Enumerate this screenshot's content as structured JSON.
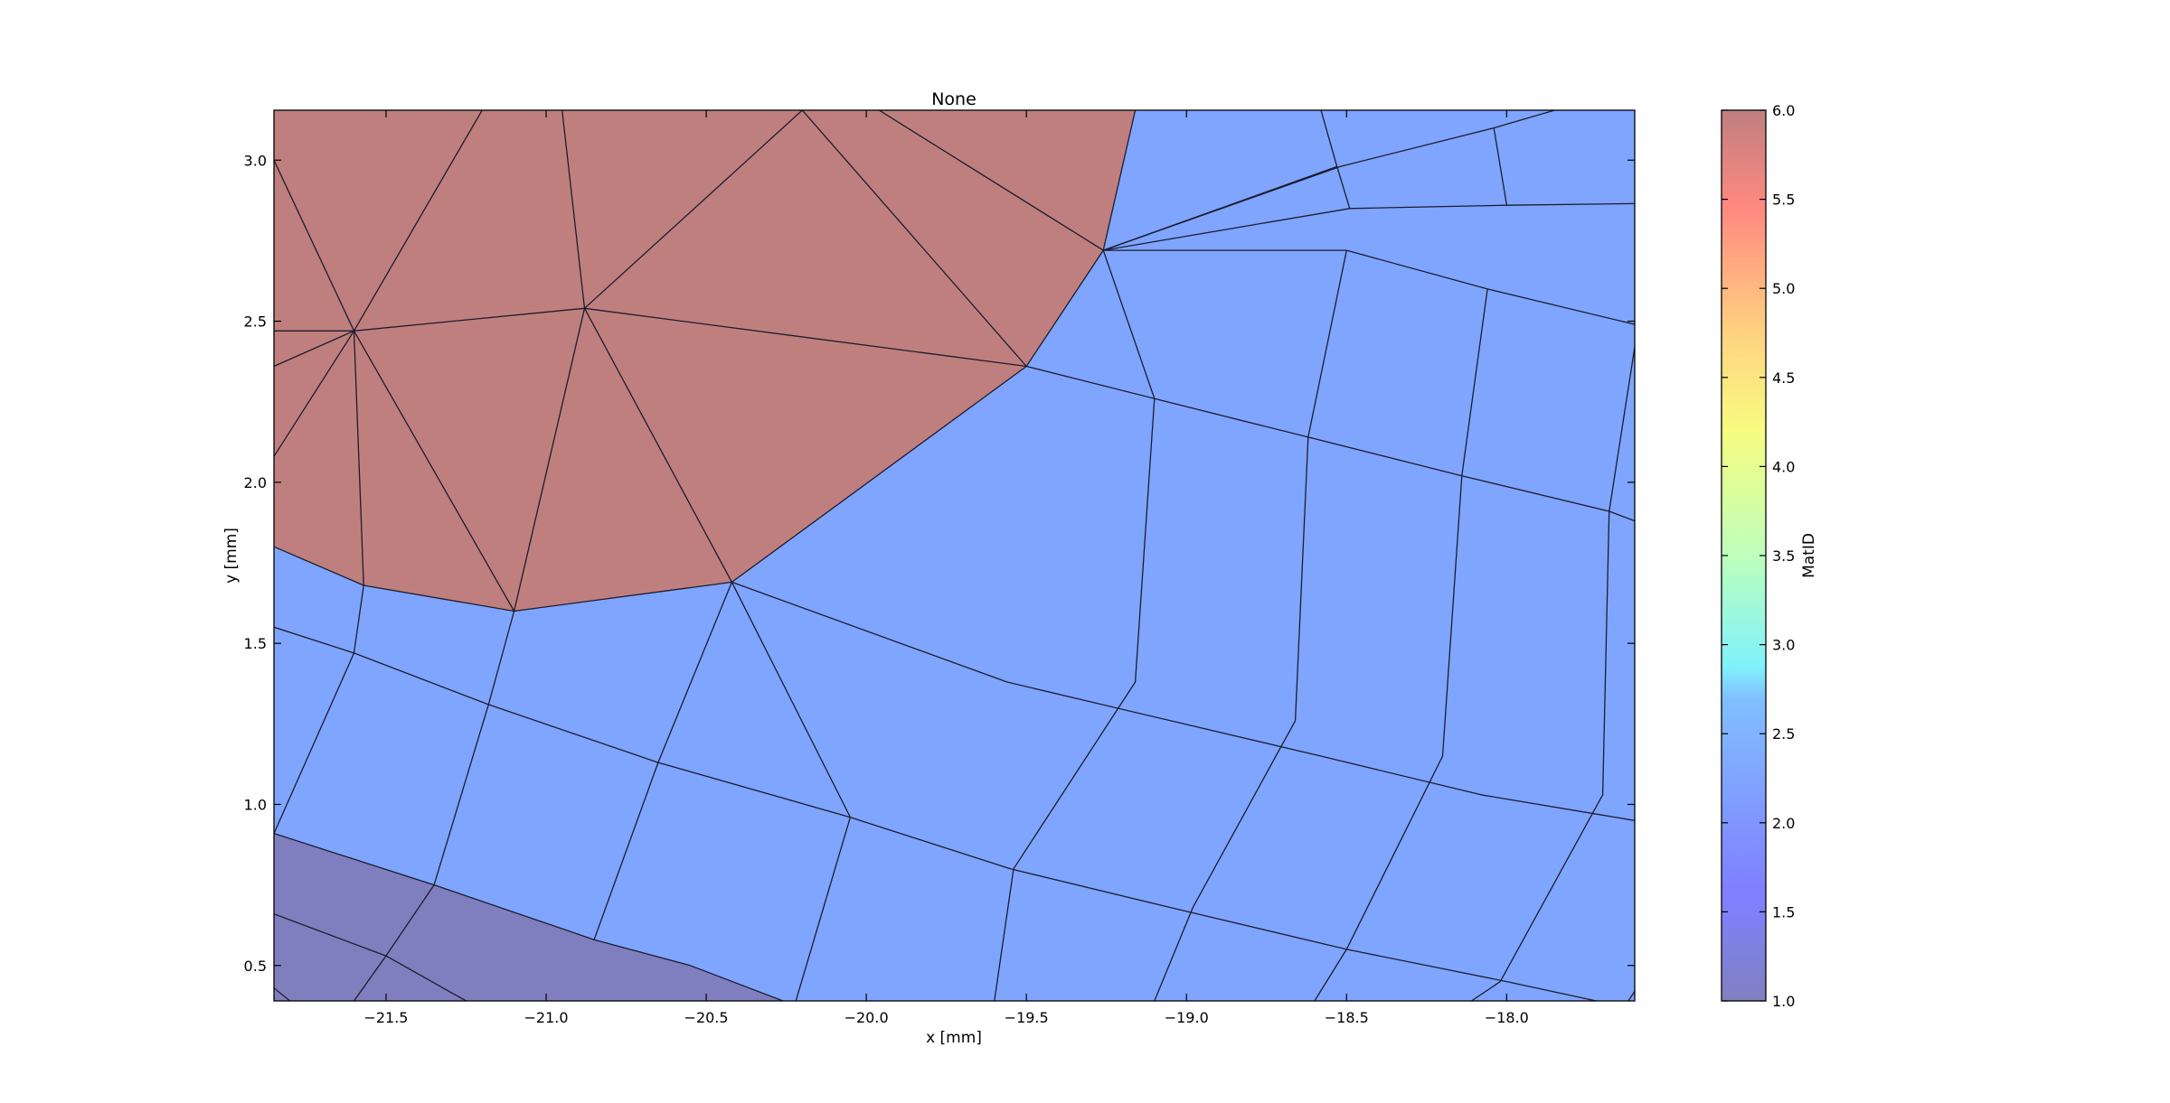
{
  "chart_data": {
    "type": "heatmap",
    "title": "None",
    "xlabel": "x [mm]",
    "ylabel": "y [mm]",
    "xlim": [
      -21.85,
      -17.6
    ],
    "ylim": [
      0.39,
      3.155
    ],
    "x_ticks": [
      -21.5,
      -21.0,
      -20.5,
      -20.0,
      -19.5,
      -19.0,
      -18.5,
      -18.0
    ],
    "y_ticks": [
      0.5,
      1.0,
      1.5,
      2.0,
      2.5,
      3.0
    ],
    "x_tick_labels": [
      "−21.5",
      "−21.0",
      "−20.5",
      "−20.0",
      "−19.5",
      "−19.0",
      "−18.5",
      "−18.0"
    ],
    "y_tick_labels": [
      "0.5",
      "1.0",
      "1.5",
      "2.0",
      "2.5",
      "3.0"
    ],
    "grid": false,
    "colorbar": {
      "label": "MatID",
      "min": 1.0,
      "max": 6.0,
      "ticks": [
        1.0,
        1.5,
        2.0,
        2.5,
        3.0,
        3.5,
        4.0,
        4.5,
        5.0,
        5.5,
        6.0
      ],
      "tick_labels": [
        "1.0",
        "1.5",
        "2.0",
        "2.5",
        "3.0",
        "3.5",
        "4.0",
        "4.5",
        "5.0",
        "5.5",
        "6.0"
      ],
      "colormap": "jet",
      "alpha": 0.5
    },
    "materials": [
      {
        "mat_id": 6,
        "color": "#bf7f7f"
      },
      {
        "mat_id": 2,
        "color": "#7fa5ff"
      },
      {
        "mat_id": 1,
        "color": "#7f7fbf"
      }
    ],
    "regions": [
      {
        "mat_id": 2,
        "polygon": [
          [
            -21.85,
            0.39
          ],
          [
            -17.6,
            0.39
          ],
          [
            -17.6,
            3.155
          ],
          [
            -21.85,
            3.155
          ]
        ]
      },
      {
        "mat_id": 6,
        "polygon": [
          [
            -21.85,
            3.155
          ],
          [
            -19.16,
            3.155
          ],
          [
            -19.26,
            2.72
          ],
          [
            -19.5,
            2.36
          ],
          [
            -20.42,
            1.69
          ],
          [
            -21.1,
            1.6
          ],
          [
            -21.57,
            1.68
          ],
          [
            -21.85,
            1.8
          ]
        ]
      },
      {
        "mat_id": 1,
        "polygon": [
          [
            -21.85,
            0.91
          ],
          [
            -21.35,
            0.75
          ],
          [
            -20.85,
            0.58
          ],
          [
            -20.55,
            0.5
          ],
          [
            -20.26,
            0.39
          ],
          [
            -21.85,
            0.39
          ]
        ]
      }
    ],
    "mesh_edges": [
      [
        [
          -21.85,
          1.8
        ],
        [
          -21.57,
          1.68
        ],
        [
          -21.1,
          1.6
        ],
        [
          -20.42,
          1.69
        ],
        [
          -19.5,
          2.36
        ],
        [
          -19.26,
          2.72
        ],
        [
          -19.16,
          3.155
        ]
      ],
      [
        [
          -21.85,
          1.55
        ],
        [
          -21.6,
          1.47
        ],
        [
          -21.18,
          1.31
        ],
        [
          -20.65,
          1.13
        ],
        [
          -20.05,
          0.96
        ],
        [
          -19.55,
          0.8
        ],
        [
          -19.05,
          0.68
        ],
        [
          -18.5,
          0.55
        ],
        [
          -18.0,
          0.45
        ],
        [
          -17.72,
          0.39
        ]
      ],
      [
        [
          -21.85,
          0.91
        ],
        [
          -21.35,
          0.75
        ],
        [
          -20.85,
          0.58
        ],
        [
          -20.55,
          0.5
        ],
        [
          -20.26,
          0.39
        ]
      ],
      [
        [
          -21.85,
          0.66
        ],
        [
          -21.5,
          0.53
        ],
        [
          -21.25,
          0.39
        ]
      ],
      [
        [
          -21.85,
          0.43
        ],
        [
          -21.8,
          0.39
        ]
      ],
      [
        [
          -20.42,
          1.69
        ],
        [
          -19.56,
          1.38
        ],
        [
          -19.05,
          1.26
        ],
        [
          -18.58,
          1.15
        ],
        [
          -18.08,
          1.03
        ],
        [
          -17.6,
          0.95
        ]
      ],
      [
        [
          -19.5,
          2.36
        ],
        [
          -19.1,
          2.26
        ],
        [
          -18.62,
          2.14
        ],
        [
          -18.14,
          2.02
        ],
        [
          -17.68,
          1.91
        ],
        [
          -17.6,
          1.88
        ]
      ],
      [
        [
          -19.26,
          2.72
        ],
        [
          -18.5,
          2.72
        ],
        [
          -18.06,
          2.6
        ],
        [
          -17.6,
          2.49
        ]
      ],
      [
        [
          -19.26,
          2.72
        ],
        [
          -18.49,
          2.85
        ],
        [
          -18.0,
          2.86
        ],
        [
          -17.6,
          2.865
        ]
      ],
      [
        [
          -19.26,
          2.72
        ],
        [
          -18.52,
          2.98
        ],
        [
          -18.04,
          3.1
        ],
        [
          -17.85,
          3.155
        ]
      ],
      [
        [
          -19.26,
          2.72
        ],
        [
          -18.53,
          2.98
        ]
      ],
      [
        [
          -19.26,
          2.72
        ],
        [
          -19.1,
          2.26
        ],
        [
          -19.16,
          1.38
        ],
        [
          -19.54,
          0.8
        ],
        [
          -19.6,
          0.39
        ]
      ],
      [
        [
          -18.5,
          2.72
        ],
        [
          -18.62,
          2.14
        ],
        [
          -18.66,
          1.26
        ],
        [
          -18.98,
          0.68
        ],
        [
          -19.1,
          0.39
        ]
      ],
      [
        [
          -18.49,
          2.85
        ],
        [
          -18.53,
          2.98
        ],
        [
          -18.58,
          3.155
        ]
      ],
      [
        [
          -18.0,
          2.86
        ],
        [
          -18.04,
          3.1
        ]
      ],
      [
        [
          -18.06,
          2.6
        ],
        [
          -18.14,
          2.02
        ],
        [
          -18.2,
          1.15
        ],
        [
          -18.5,
          0.55
        ],
        [
          -18.6,
          0.39
        ]
      ],
      [
        [
          -17.68,
          1.91
        ],
        [
          -17.7,
          1.03
        ],
        [
          -18.02,
          0.45
        ],
        [
          -18.11,
          0.39
        ]
      ],
      [
        [
          -17.6,
          2.42
        ],
        [
          -17.68,
          1.91
        ]
      ],
      [
        [
          -17.6,
          0.42
        ],
        [
          -17.62,
          0.39
        ]
      ],
      [
        [
          -20.42,
          1.69
        ],
        [
          -20.05,
          0.96
        ],
        [
          -20.22,
          0.39
        ]
      ],
      [
        [
          -20.42,
          1.69
        ],
        [
          -20.65,
          1.13
        ],
        [
          -20.85,
          0.58
        ]
      ],
      [
        [
          -21.1,
          1.6
        ],
        [
          -21.18,
          1.31
        ],
        [
          -21.35,
          0.75
        ],
        [
          -21.5,
          0.53
        ],
        [
          -21.6,
          0.39
        ]
      ],
      [
        [
          -21.57,
          1.68
        ],
        [
          -21.6,
          1.47
        ],
        [
          -21.85,
          0.91
        ]
      ],
      [
        [
          -21.85,
          3.0
        ],
        [
          -21.6,
          2.47
        ],
        [
          -21.1,
          1.6
        ]
      ],
      [
        [
          -21.85,
          2.47
        ],
        [
          -21.6,
          2.47
        ],
        [
          -20.88,
          2.54
        ],
        [
          -19.5,
          2.36
        ]
      ],
      [
        [
          -21.85,
          2.36
        ],
        [
          -21.6,
          2.47
        ],
        [
          -21.57,
          1.68
        ]
      ],
      [
        [
          -21.85,
          2.08
        ],
        [
          -21.6,
          2.47
        ],
        [
          -21.2,
          3.155
        ]
      ],
      [
        [
          -20.95,
          3.155
        ],
        [
          -20.88,
          2.54
        ],
        [
          -21.1,
          1.6
        ]
      ],
      [
        [
          -20.88,
          2.54
        ],
        [
          -20.42,
          1.69
        ]
      ],
      [
        [
          -20.88,
          2.54
        ],
        [
          -20.2,
          3.155
        ],
        [
          -19.5,
          2.36
        ]
      ],
      [
        [
          -19.26,
          2.72
        ],
        [
          -19.96,
          3.155
        ]
      ]
    ]
  }
}
